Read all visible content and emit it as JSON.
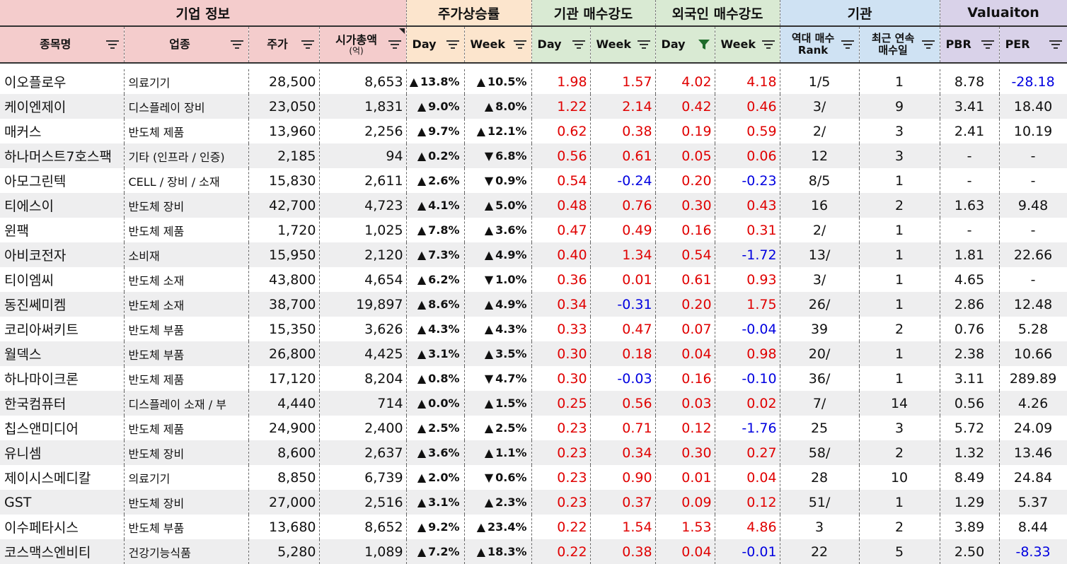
{
  "groups": [
    {
      "label": "기업 정보",
      "span": 4,
      "bg": "#f4cccc"
    },
    {
      "label": "주가상승률",
      "span": 2,
      "bg": "#fce5cd"
    },
    {
      "label": "기관 매수강도",
      "span": 2,
      "bg": "#d9ead3"
    },
    {
      "label": "외국인 매수강도",
      "span": 2,
      "bg": "#d9ead3"
    },
    {
      "label": "기관",
      "span": 2,
      "bg": "#cfe2f3"
    },
    {
      "label": "Valuaiton",
      "span": 2,
      "bg": "#d9d2e9"
    }
  ],
  "columns": [
    {
      "label": "종목명",
      "sub": "",
      "bg": "#f4cccc",
      "filter": "lines"
    },
    {
      "label": "업종",
      "sub": "",
      "bg": "#f4cccc",
      "filter": "lines"
    },
    {
      "label": "주가",
      "sub": "",
      "bg": "#f4cccc",
      "filter": "lines"
    },
    {
      "label": "시가총액",
      "sub": "(억)",
      "bg": "#f4cccc",
      "filter": "lines"
    },
    {
      "label": "Day",
      "sub": "",
      "bg": "#fce5cd",
      "filter": "lines"
    },
    {
      "label": "Week",
      "sub": "",
      "bg": "#fce5cd",
      "filter": "lines"
    },
    {
      "label": "Day",
      "sub": "",
      "bg": "#d9ead3",
      "filter": "lines"
    },
    {
      "label": "Week",
      "sub": "",
      "bg": "#d9ead3",
      "filter": "lines"
    },
    {
      "label": "Day",
      "sub": "",
      "bg": "#d9ead3",
      "filter": "funnel"
    },
    {
      "label": "Week",
      "sub": "",
      "bg": "#d9ead3",
      "filter": "lines"
    },
    {
      "label": "역대 매수",
      "sub": "Rank",
      "bg": "#cfe2f3",
      "filter": "lines"
    },
    {
      "label": "최근 연속",
      "sub": "매수일",
      "bg": "#cfe2f3",
      "filter": "lines"
    },
    {
      "label": "PBR",
      "sub": "",
      "bg": "#d9d2e9",
      "filter": "lines"
    },
    {
      "label": "PER",
      "sub": "",
      "bg": "#d9d2e9",
      "filter": "lines"
    }
  ],
  "colors": {
    "up": "#e00000",
    "down": "#0000e0",
    "stripe": "#eeeeef"
  },
  "rows": [
    {
      "name": "이오플로우",
      "sector": "의료기기",
      "price": "28,500",
      "mcap": "8,653",
      "day": "13.8%",
      "day_dir": "up",
      "week": "10.5%",
      "week_dir": "up",
      "inst_day": "1.98",
      "inst_week": "1.57",
      "for_day": "4.02",
      "for_week": "4.18",
      "rank": "1/5",
      "streak": "1",
      "pbr": "8.78",
      "per": "-28.18"
    },
    {
      "name": "케이엔제이",
      "sector": "디스플레이 장비",
      "price": "23,050",
      "mcap": "1,831",
      "day": "9.0%",
      "day_dir": "up",
      "week": "8.0%",
      "week_dir": "up",
      "inst_day": "1.22",
      "inst_week": "2.14",
      "for_day": "0.42",
      "for_week": "0.46",
      "rank": "3/",
      "streak": "9",
      "pbr": "3.41",
      "per": "18.40"
    },
    {
      "name": "매커스",
      "sector": "반도체 제품",
      "price": "13,960",
      "mcap": "2,256",
      "day": "9.7%",
      "day_dir": "up",
      "week": "12.1%",
      "week_dir": "up",
      "inst_day": "0.62",
      "inst_week": "0.38",
      "for_day": "0.19",
      "for_week": "0.59",
      "rank": "2/",
      "streak": "3",
      "pbr": "2.41",
      "per": "10.19"
    },
    {
      "name": "하나머스트7호스팩",
      "sector": "기타 (인프라 / 인증)",
      "price": "2,185",
      "mcap": "94",
      "day": "0.2%",
      "day_dir": "up",
      "week": "6.8%",
      "week_dir": "down",
      "inst_day": "0.56",
      "inst_week": "0.61",
      "for_day": "0.05",
      "for_week": "0.06",
      "rank": "12",
      "streak": "3",
      "pbr": "-",
      "per": "-"
    },
    {
      "name": "아모그린텍",
      "sector": "CELL / 장비 / 소재",
      "price": "15,830",
      "mcap": "2,611",
      "day": "2.6%",
      "day_dir": "up",
      "week": "0.9%",
      "week_dir": "down",
      "inst_day": "0.54",
      "inst_week": "-0.24",
      "for_day": "0.20",
      "for_week": "-0.23",
      "rank": "8/5",
      "streak": "1",
      "pbr": "-",
      "per": "-"
    },
    {
      "name": "티에스이",
      "sector": "반도체 장비",
      "price": "42,700",
      "mcap": "4,723",
      "day": "4.1%",
      "day_dir": "up",
      "week": "5.0%",
      "week_dir": "up",
      "inst_day": "0.48",
      "inst_week": "0.76",
      "for_day": "0.30",
      "for_week": "0.43",
      "rank": "16",
      "streak": "2",
      "pbr": "1.63",
      "per": "9.48"
    },
    {
      "name": "윈팩",
      "sector": "반도체 제품",
      "price": "1,720",
      "mcap": "1,025",
      "day": "7.8%",
      "day_dir": "up",
      "week": "3.6%",
      "week_dir": "up",
      "inst_day": "0.47",
      "inst_week": "0.49",
      "for_day": "0.16",
      "for_week": "0.31",
      "rank": "2/",
      "streak": "1",
      "pbr": "-",
      "per": "-"
    },
    {
      "name": "아비코전자",
      "sector": "소비재",
      "price": "15,950",
      "mcap": "2,120",
      "day": "7.3%",
      "day_dir": "up",
      "week": "4.9%",
      "week_dir": "up",
      "inst_day": "0.40",
      "inst_week": "1.34",
      "for_day": "0.54",
      "for_week": "-1.72",
      "rank": "13/",
      "streak": "1",
      "pbr": "1.81",
      "per": "22.66"
    },
    {
      "name": "티이엠씨",
      "sector": "반도체 소재",
      "price": "43,800",
      "mcap": "4,654",
      "day": "6.2%",
      "day_dir": "up",
      "week": "1.0%",
      "week_dir": "down",
      "inst_day": "0.36",
      "inst_week": "0.01",
      "for_day": "0.61",
      "for_week": "0.93",
      "rank": "3/",
      "streak": "1",
      "pbr": "4.65",
      "per": "-"
    },
    {
      "name": "동진쎄미켐",
      "sector": "반도체 소재",
      "price": "38,700",
      "mcap": "19,897",
      "day": "8.6%",
      "day_dir": "up",
      "week": "4.9%",
      "week_dir": "up",
      "inst_day": "0.34",
      "inst_week": "-0.31",
      "for_day": "0.20",
      "for_week": "1.75",
      "rank": "26/",
      "streak": "1",
      "pbr": "2.86",
      "per": "12.48"
    },
    {
      "name": "코리아써키트",
      "sector": "반도체 부품",
      "price": "15,350",
      "mcap": "3,626",
      "day": "4.3%",
      "day_dir": "up",
      "week": "4.3%",
      "week_dir": "up",
      "inst_day": "0.33",
      "inst_week": "0.47",
      "for_day": "0.07",
      "for_week": "-0.04",
      "rank": "39",
      "streak": "2",
      "pbr": "0.76",
      "per": "5.28"
    },
    {
      "name": "월덱스",
      "sector": "반도체 부품",
      "price": "26,800",
      "mcap": "4,425",
      "day": "3.1%",
      "day_dir": "up",
      "week": "3.5%",
      "week_dir": "up",
      "inst_day": "0.30",
      "inst_week": "0.18",
      "for_day": "0.04",
      "for_week": "0.98",
      "rank": "20/",
      "streak": "1",
      "pbr": "2.38",
      "per": "10.66"
    },
    {
      "name": "하나마이크론",
      "sector": "반도체 제품",
      "price": "17,120",
      "mcap": "8,204",
      "day": "0.8%",
      "day_dir": "up",
      "week": "4.7%",
      "week_dir": "down",
      "inst_day": "0.30",
      "inst_week": "-0.03",
      "for_day": "0.16",
      "for_week": "-0.10",
      "rank": "36/",
      "streak": "1",
      "pbr": "3.11",
      "per": "289.89"
    },
    {
      "name": "한국컴퓨터",
      "sector": "디스플레이 소재 / 부",
      "price": "4,440",
      "mcap": "714",
      "day": "0.0%",
      "day_dir": "up",
      "week": "1.5%",
      "week_dir": "up",
      "inst_day": "0.25",
      "inst_week": "0.56",
      "for_day": "0.03",
      "for_week": "0.02",
      "rank": "7/",
      "streak": "14",
      "pbr": "0.56",
      "per": "4.26"
    },
    {
      "name": "칩스앤미디어",
      "sector": "반도체 제품",
      "price": "24,900",
      "mcap": "2,400",
      "day": "2.5%",
      "day_dir": "up",
      "week": "2.5%",
      "week_dir": "up",
      "inst_day": "0.23",
      "inst_week": "0.71",
      "for_day": "0.12",
      "for_week": "-1.76",
      "rank": "25",
      "streak": "3",
      "pbr": "5.72",
      "per": "24.09"
    },
    {
      "name": "유니셈",
      "sector": "반도체 장비",
      "price": "8,600",
      "mcap": "2,637",
      "day": "3.6%",
      "day_dir": "up",
      "week": "1.1%",
      "week_dir": "up",
      "inst_day": "0.23",
      "inst_week": "0.34",
      "for_day": "0.30",
      "for_week": "0.27",
      "rank": "58/",
      "streak": "2",
      "pbr": "1.32",
      "per": "13.46"
    },
    {
      "name": "제이시스메디칼",
      "sector": "의료기기",
      "price": "8,850",
      "mcap": "6,739",
      "day": "2.0%",
      "day_dir": "up",
      "week": "0.6%",
      "week_dir": "down",
      "inst_day": "0.23",
      "inst_week": "0.90",
      "for_day": "0.01",
      "for_week": "0.04",
      "rank": "28",
      "streak": "10",
      "pbr": "8.49",
      "per": "24.84"
    },
    {
      "name": "GST",
      "sector": "반도체 장비",
      "price": "27,000",
      "mcap": "2,516",
      "day": "3.1%",
      "day_dir": "up",
      "week": "2.3%",
      "week_dir": "up",
      "inst_day": "0.23",
      "inst_week": "0.37",
      "for_day": "0.09",
      "for_week": "0.12",
      "rank": "51/",
      "streak": "1",
      "pbr": "1.29",
      "per": "5.37"
    },
    {
      "name": "이수페타시스",
      "sector": "반도체 부품",
      "price": "13,680",
      "mcap": "8,652",
      "day": "9.2%",
      "day_dir": "up",
      "week": "23.4%",
      "week_dir": "up",
      "inst_day": "0.22",
      "inst_week": "1.54",
      "for_day": "1.53",
      "for_week": "4.86",
      "rank": "3",
      "streak": "2",
      "pbr": "3.89",
      "per": "8.44"
    },
    {
      "name": "코스맥스엔비티",
      "sector": "건강기능식품",
      "price": "5,280",
      "mcap": "1,089",
      "day": "7.2%",
      "day_dir": "up",
      "week": "18.3%",
      "week_dir": "up",
      "inst_day": "0.22",
      "inst_week": "0.38",
      "for_day": "0.04",
      "for_week": "-0.01",
      "rank": "22",
      "streak": "5",
      "pbr": "2.50",
      "per": "-8.33"
    }
  ]
}
